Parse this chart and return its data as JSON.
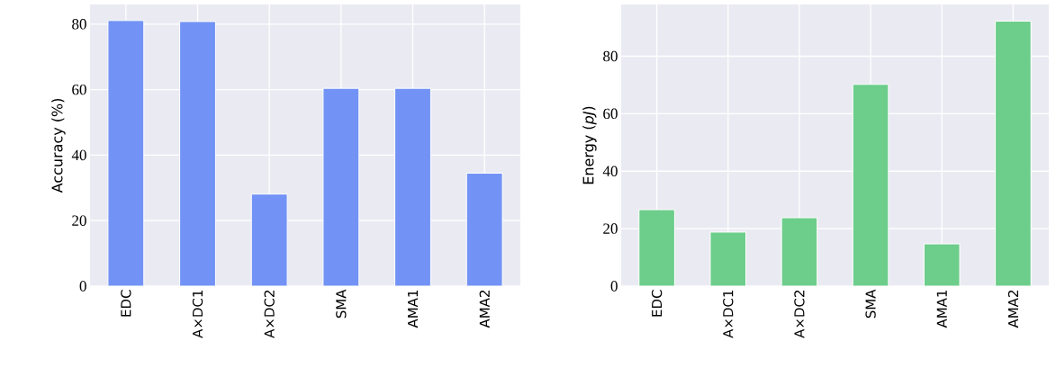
{
  "chart_data": [
    {
      "type": "bar",
      "ylabel": "Accuracy (%)",
      "categories": [
        "EDC",
        "A×DC1",
        "A×DC2",
        "SMA",
        "AMA1",
        "AMA2"
      ],
      "values": [
        81.1,
        80.8,
        28.1,
        60.4,
        60.4,
        34.5
      ],
      "color": "#7293f5",
      "ylim": [
        0,
        86
      ],
      "yticks": [
        0,
        20,
        40,
        60,
        80
      ],
      "grid": true
    },
    {
      "type": "bar",
      "ylabel": "Energy (*pJ*)",
      "categories": [
        "EDC",
        "A×DC1",
        "A×DC2",
        "SMA",
        "AMA1",
        "AMA2"
      ],
      "values": [
        26.6,
        18.8,
        23.8,
        70.2,
        14.7,
        92.2
      ],
      "color": "#6dcd8b",
      "ylim": [
        0,
        98
      ],
      "yticks": [
        0,
        20,
        40,
        60,
        80
      ],
      "grid": true
    }
  ]
}
